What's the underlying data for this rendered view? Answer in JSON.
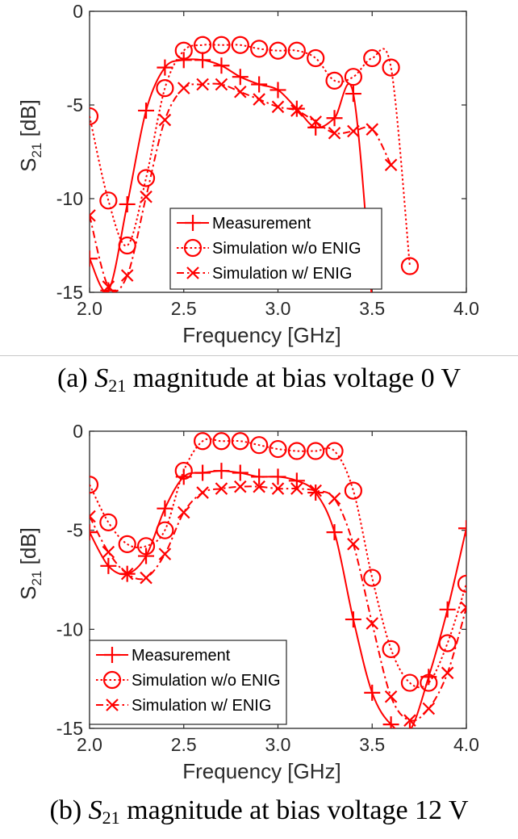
{
  "chart_data": [
    {
      "type": "line",
      "xlabel": "Frequency [GHz]",
      "ylabel_main": "S",
      "ylabel_sub": "21",
      "ylabel_unit": " [dB]",
      "xlim": [
        2.0,
        4.0
      ],
      "ylim": [
        -15,
        0
      ],
      "xticks": [
        "2.0",
        "2.5",
        "3.0",
        "3.5",
        "4.0"
      ],
      "yticks": [
        "0",
        "-5",
        "-10",
        "-15"
      ],
      "legend_position": "bottom-center",
      "series": [
        {
          "name": "Measurement",
          "marker": "plus",
          "dash": "solid",
          "color": "#ff0000",
          "x": [
            2.0,
            2.1,
            2.2,
            2.3,
            2.4,
            2.5,
            2.6,
            2.7,
            2.8,
            2.9,
            3.0,
            3.1,
            3.2,
            3.3,
            3.4,
            3.5
          ],
          "y": [
            -13.2,
            -14.9,
            -10.3,
            -5.3,
            -3.0,
            -2.6,
            -2.6,
            -2.9,
            -3.5,
            -3.9,
            -4.2,
            -5.2,
            -6.2,
            -5.7,
            -4.4,
            -15.5
          ]
        },
        {
          "name": "Simulation w/o ENIG",
          "marker": "circle",
          "dash": "dotted",
          "color": "#ff0000",
          "x": [
            2.0,
            2.1,
            2.2,
            2.3,
            2.4,
            2.5,
            2.6,
            2.7,
            2.8,
            2.9,
            3.0,
            3.1,
            3.2,
            3.3,
            3.4,
            3.5,
            3.6,
            3.7
          ],
          "y": [
            -5.6,
            -10.1,
            -12.5,
            -8.9,
            -4.1,
            -2.1,
            -1.8,
            -1.8,
            -1.8,
            -2.0,
            -2.1,
            -2.1,
            -2.5,
            -3.7,
            -3.5,
            -2.5,
            -3.0,
            -13.6
          ]
        },
        {
          "name": "Simulation w/ ENIG",
          "marker": "x",
          "dash": "dashdot",
          "color": "#ff0000",
          "x": [
            2.0,
            2.1,
            2.2,
            2.3,
            2.4,
            2.5,
            2.6,
            2.7,
            2.8,
            2.9,
            3.0,
            3.1,
            3.2,
            3.3,
            3.4,
            3.5,
            3.6
          ],
          "y": [
            -10.9,
            -14.7,
            -14.1,
            -9.9,
            -5.8,
            -4.1,
            -3.9,
            -3.9,
            -4.3,
            -4.7,
            -5.1,
            -5.3,
            -5.9,
            -6.5,
            -6.4,
            -6.3,
            -8.2
          ]
        }
      ]
    },
    {
      "type": "line",
      "xlabel": "Frequency [GHz]",
      "ylabel_main": "S",
      "ylabel_sub": "21",
      "ylabel_unit": " [dB]",
      "xlim": [
        2.0,
        4.0
      ],
      "ylim": [
        -15,
        0
      ],
      "xticks": [
        "2.0",
        "2.5",
        "3.0",
        "3.5",
        "4.0"
      ],
      "yticks": [
        "0",
        "-5",
        "-10",
        "-15"
      ],
      "legend_position": "bottom-left",
      "series": [
        {
          "name": "Measurement",
          "marker": "plus",
          "dash": "solid",
          "color": "#ff0000",
          "x": [
            2.0,
            2.1,
            2.2,
            2.3,
            2.4,
            2.5,
            2.6,
            2.7,
            2.8,
            2.9,
            3.0,
            3.1,
            3.2,
            3.3,
            3.4,
            3.5,
            3.6,
            3.7,
            3.8,
            3.9,
            4.0
          ],
          "y": [
            -5.1,
            -6.8,
            -7.2,
            -6.3,
            -3.9,
            -2.3,
            -2.1,
            -2.0,
            -2.1,
            -2.3,
            -2.3,
            -2.5,
            -3.1,
            -5.1,
            -9.5,
            -13.2,
            -14.8,
            -15.1,
            -12.4,
            -9.0,
            -4.9
          ]
        },
        {
          "name": "Simulation w/o ENIG",
          "marker": "circle",
          "dash": "dotted",
          "color": "#ff0000",
          "x": [
            2.0,
            2.1,
            2.2,
            2.3,
            2.4,
            2.5,
            2.6,
            2.7,
            2.8,
            2.9,
            3.0,
            3.1,
            3.2,
            3.3,
            3.4,
            3.5,
            3.6,
            3.7,
            3.8,
            3.9,
            4.0
          ],
          "y": [
            -2.7,
            -4.6,
            -5.7,
            -5.8,
            -5.0,
            -2.0,
            -0.5,
            -0.5,
            -0.5,
            -0.7,
            -0.9,
            -1.0,
            -1.0,
            -1.0,
            -3.0,
            -7.4,
            -11.0,
            -12.7,
            -12.7,
            -10.7,
            -7.7
          ]
        },
        {
          "name": "Simulation w/ ENIG",
          "marker": "x",
          "dash": "dashdot",
          "color": "#ff0000",
          "x": [
            2.0,
            2.1,
            2.2,
            2.3,
            2.4,
            2.5,
            2.6,
            2.7,
            2.8,
            2.9,
            3.0,
            3.1,
            3.2,
            3.3,
            3.4,
            3.5,
            3.6,
            3.7,
            3.8,
            3.9,
            4.0
          ],
          "y": [
            -4.3,
            -6.1,
            -7.2,
            -7.4,
            -6.2,
            -4.1,
            -3.1,
            -2.9,
            -2.8,
            -2.8,
            -2.9,
            -2.9,
            -3.0,
            -3.4,
            -5.7,
            -9.7,
            -13.4,
            -14.6,
            -14.0,
            -12.2,
            -8.9
          ]
        }
      ]
    }
  ],
  "captions": [
    {
      "label": "(a) ",
      "var": "S",
      "sub": "21",
      "rest": " magnitude at bias voltage 0 V"
    },
    {
      "label": "(b) ",
      "var": "S",
      "sub": "21",
      "rest": " magnitude at bias voltage 12 V"
    }
  ]
}
